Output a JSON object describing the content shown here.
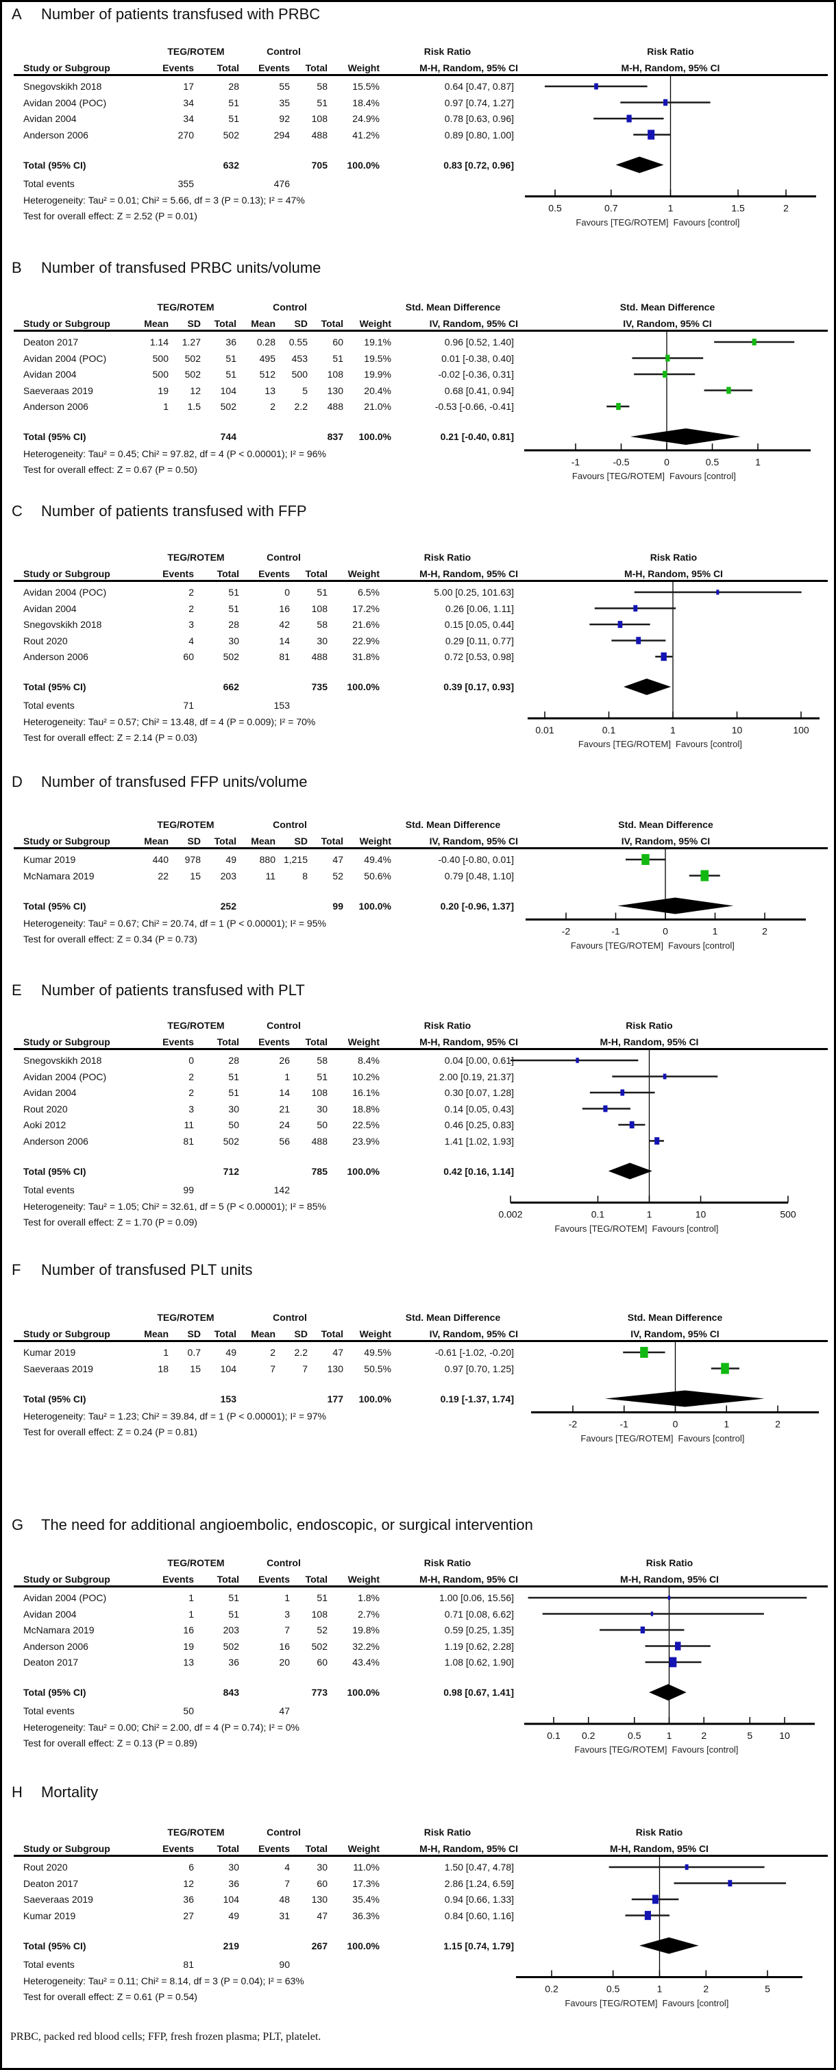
{
  "footnote": "PRBC, packed red blood cells; FFP, fresh frozen plasma; PLT, platelet.",
  "colors": {
    "rr_marker": "#1414b4",
    "smd_marker": "#12b812",
    "diamond": "#000000"
  },
  "chart_data": [
    {
      "type": "forest",
      "letter": "A",
      "title": "Number of patients transfused with PRBC",
      "kind": "RR",
      "scale": "log",
      "group_headers": [
        "TEG/ROTEM",
        "Control",
        "Risk Ratio",
        "Risk Ratio"
      ],
      "columns": [
        "Study or Subgroup",
        "Events",
        "Total",
        "Events",
        "Total",
        "Weight",
        "M-H, Random, 95% CI"
      ],
      "plot_header": "M-H, Random, 95% CI",
      "studies": [
        [
          "Snegovskikh 2018",
          "17",
          "28",
          "55",
          "58",
          "15.5%",
          "0.64 [0.47, 0.87]"
        ],
        [
          "Avidan 2004 (POC)",
          "34",
          "51",
          "35",
          "51",
          "18.4%",
          "0.97 [0.74, 1.27]"
        ],
        [
          "Avidan 2004",
          "34",
          "51",
          "92",
          "108",
          "24.9%",
          "0.78 [0.63, 0.96]"
        ],
        [
          "Anderson 2006",
          "270",
          "502",
          "294",
          "488",
          "41.2%",
          "0.89 [0.80, 1.00]"
        ]
      ],
      "total": [
        "Total (95% CI)",
        "",
        "632",
        "",
        "705",
        "100.0%",
        "0.83 [0.72, 0.96]"
      ],
      "total_events": [
        "Total events",
        "355",
        "",
        "476"
      ],
      "heterogeneity": "Heterogeneity: Tau² = 0.01; Chi² = 5.66, df = 3 (P = 0.13); I² = 47%",
      "overall_effect": "Test for overall effect: Z = 2.52 (P = 0.01)",
      "ticks": [
        "0.5",
        "0.7",
        "1",
        "1.5",
        "2"
      ],
      "favours": [
        "Favours [TEG/ROTEM]",
        "Favours [control]"
      ]
    },
    {
      "type": "forest",
      "letter": "B",
      "title": "Number of transfused PRBC units/volume",
      "kind": "SMD",
      "scale": "linear",
      "group_headers": [
        "TEG/ROTEM",
        "Control",
        "Std. Mean Difference",
        "Std. Mean Difference"
      ],
      "columns": [
        "Study or Subgroup",
        "Mean",
        "SD",
        "Total",
        "Mean",
        "SD",
        "Total",
        "Weight",
        "IV, Random, 95% CI"
      ],
      "plot_header": "IV, Random, 95% CI",
      "studies": [
        [
          "Deaton 2017",
          "1.14",
          "1.27",
          "36",
          "0.28",
          "0.55",
          "60",
          "19.1%",
          "0.96 [0.52, 1.40]"
        ],
        [
          "Avidan 2004 (POC)",
          "500",
          "502",
          "51",
          "495",
          "453",
          "51",
          "19.5%",
          "0.01 [-0.38, 0.40]"
        ],
        [
          "Avidan 2004",
          "500",
          "502",
          "51",
          "512",
          "500",
          "108",
          "19.9%",
          "-0.02 [-0.36, 0.31]"
        ],
        [
          "Saeveraas 2019",
          "19",
          "12",
          "104",
          "13",
          "5",
          "130",
          "20.4%",
          "0.68 [0.41, 0.94]"
        ],
        [
          "Anderson 2006",
          "1",
          "1.5",
          "502",
          "2",
          "2.2",
          "488",
          "21.0%",
          "-0.53 [-0.66, -0.41]"
        ]
      ],
      "total": [
        "Total (95% CI)",
        "",
        "",
        "744",
        "",
        "",
        "837",
        "100.0%",
        "0.21 [-0.40, 0.81]"
      ],
      "heterogeneity": "Heterogeneity: Tau² = 0.45; Chi² = 97.82, df = 4 (P < 0.00001); I² = 96%",
      "overall_effect": "Test for overall effect: Z = 0.67 (P = 0.50)",
      "ticks": [
        "-1",
        "-0.5",
        "0",
        "0.5",
        "1"
      ],
      "favours": [
        "Favours [TEG/ROTEM]",
        "Favours [control]"
      ]
    },
    {
      "type": "forest",
      "letter": "C",
      "title": "Number of patients transfused with FFP",
      "kind": "RR",
      "scale": "log",
      "group_headers": [
        "TEG/ROTEM",
        "Control",
        "Risk Ratio",
        "Risk Ratio"
      ],
      "columns": [
        "Study or Subgroup",
        "Events",
        "Total",
        "Events",
        "Total",
        "Weight",
        "M-H, Random, 95% CI"
      ],
      "plot_header": "M-H, Random, 95% CI",
      "studies": [
        [
          "Avidan 2004 (POC)",
          "2",
          "51",
          "0",
          "51",
          "6.5%",
          "5.00 [0.25, 101.63]"
        ],
        [
          "Avidan 2004",
          "2",
          "51",
          "16",
          "108",
          "17.2%",
          "0.26 [0.06, 1.11]"
        ],
        [
          "Snegovskikh 2018",
          "3",
          "28",
          "42",
          "58",
          "21.6%",
          "0.15 [0.05, 0.44]"
        ],
        [
          "Rout 2020",
          "4",
          "30",
          "14",
          "30",
          "22.9%",
          "0.29 [0.11, 0.77]"
        ],
        [
          "Anderson 2006",
          "60",
          "502",
          "81",
          "488",
          "31.8%",
          "0.72 [0.53, 0.98]"
        ]
      ],
      "total": [
        "Total (95% CI)",
        "",
        "662",
        "",
        "735",
        "100.0%",
        "0.39 [0.17, 0.93]"
      ],
      "total_events": [
        "Total events",
        "71",
        "",
        "153"
      ],
      "heterogeneity": "Heterogeneity: Tau² = 0.57; Chi² = 13.48, df = 4 (P = 0.009); I² = 70%",
      "overall_effect": "Test for overall effect: Z = 2.14 (P = 0.03)",
      "ticks": [
        "0.01",
        "0.1",
        "1",
        "10",
        "100"
      ],
      "favours": [
        "Favours [TEG/ROTEM]",
        "Favours [control]"
      ]
    },
    {
      "type": "forest",
      "letter": "D",
      "title": "Number of transfused FFP units/volume",
      "kind": "SMD",
      "scale": "linear",
      "group_headers": [
        "TEG/ROTEM",
        "Control",
        "Std. Mean Difference",
        "Std. Mean Difference"
      ],
      "columns": [
        "Study or Subgroup",
        "Mean",
        "SD",
        "Total",
        "Mean",
        "SD",
        "Total",
        "Weight",
        "IV, Random, 95% CI"
      ],
      "plot_header": "IV, Random, 95% CI",
      "studies": [
        [
          "Kumar 2019",
          "440",
          "978",
          "49",
          "880",
          "1,215",
          "47",
          "49.4%",
          "-0.40 [-0.80, 0.01]"
        ],
        [
          "McNamara 2019",
          "22",
          "15",
          "203",
          "11",
          "8",
          "52",
          "50.6%",
          "0.79 [0.48, 1.10]"
        ]
      ],
      "total": [
        "Total (95% CI)",
        "",
        "",
        "252",
        "",
        "",
        "99",
        "100.0%",
        "0.20 [-0.96, 1.37]"
      ],
      "heterogeneity": "Heterogeneity: Tau² = 0.67; Chi² = 20.74, df = 1 (P < 0.00001); I² = 95%",
      "overall_effect": "Test for overall effect: Z = 0.34 (P = 0.73)",
      "ticks": [
        "-2",
        "-1",
        "0",
        "1",
        "2"
      ],
      "favours": [
        "Favours [TEG/ROTEM]",
        "Favours [control]"
      ]
    },
    {
      "type": "forest",
      "letter": "E",
      "title": "Number of patients transfused with PLT",
      "kind": "RR",
      "scale": "log",
      "group_headers": [
        "TEG/ROTEM",
        "Control",
        "Risk Ratio",
        "Risk Ratio"
      ],
      "columns": [
        "Study or Subgroup",
        "Events",
        "Total",
        "Events",
        "Total",
        "Weight",
        "M-H, Random, 95% CI"
      ],
      "plot_header": "M-H, Random, 95% CI",
      "studies": [
        [
          "Snegovskikh 2018",
          "0",
          "28",
          "26",
          "58",
          "8.4%",
          "0.04 [0.00, 0.61]"
        ],
        [
          "Avidan 2004 (POC)",
          "2",
          "51",
          "1",
          "51",
          "10.2%",
          "2.00 [0.19, 21.37]"
        ],
        [
          "Avidan 2004",
          "2",
          "51",
          "14",
          "108",
          "16.1%",
          "0.30 [0.07, 1.28]"
        ],
        [
          "Rout 2020",
          "3",
          "30",
          "21",
          "30",
          "18.8%",
          "0.14 [0.05, 0.43]"
        ],
        [
          "Aoki 2012",
          "11",
          "50",
          "24",
          "50",
          "22.5%",
          "0.46 [0.25, 0.83]"
        ],
        [
          "Anderson 2006",
          "81",
          "502",
          "56",
          "488",
          "23.9%",
          "1.41 [1.02, 1.93]"
        ]
      ],
      "total": [
        "Total (95% CI)",
        "",
        "712",
        "",
        "785",
        "100.0%",
        "0.42 [0.16, 1.14]"
      ],
      "total_events": [
        "Total events",
        "99",
        "",
        "142"
      ],
      "heterogeneity": "Heterogeneity: Tau² = 1.05; Chi² = 32.61, df = 5 (P < 0.00001); I² = 85%",
      "overall_effect": "Test for overall effect: Z = 1.70 (P = 0.09)",
      "ticks": [
        "0.002",
        "0.1",
        "1",
        "10",
        "500"
      ],
      "favours": [
        "Favours [TEG/ROTEM]",
        "Favours [control]"
      ]
    },
    {
      "type": "forest",
      "letter": "F",
      "title": "Number of transfused PLT units",
      "kind": "SMD",
      "scale": "linear",
      "group_headers": [
        "TEG/ROTEM",
        "Control",
        "Std. Mean Difference",
        "Std. Mean Difference"
      ],
      "columns": [
        "Study or Subgroup",
        "Mean",
        "SD",
        "Total",
        "Mean",
        "SD",
        "Total",
        "Weight",
        "IV, Random, 95% CI"
      ],
      "plot_header": "IV, Random, 95% CI",
      "studies": [
        [
          "Kumar 2019",
          "1",
          "0.7",
          "49",
          "2",
          "2.2",
          "47",
          "49.5%",
          "-0.61 [-1.02, -0.20]"
        ],
        [
          "Saeveraas 2019",
          "18",
          "15",
          "104",
          "7",
          "7",
          "130",
          "50.5%",
          "0.97 [0.70, 1.25]"
        ]
      ],
      "total": [
        "Total (95% CI)",
        "",
        "",
        "153",
        "",
        "",
        "177",
        "100.0%",
        "0.19 [-1.37, 1.74]"
      ],
      "heterogeneity": "Heterogeneity: Tau² = 1.23; Chi² = 39.84, df = 1 (P < 0.00001); I² = 97%",
      "overall_effect": "Test for overall effect: Z = 0.24 (P = 0.81)",
      "ticks": [
        "-2",
        "-1",
        "0",
        "1",
        "2"
      ],
      "favours": [
        "Favours [TEG/ROTEM]",
        "Favours [control]"
      ]
    },
    {
      "type": "forest",
      "letter": "G",
      "title": "The need for additional angioembolic, endoscopic, or surgical intervention",
      "kind": "RR",
      "scale": "log",
      "group_headers": [
        "TEG/ROTEM",
        "Control",
        "Risk Ratio",
        "Risk Ratio"
      ],
      "columns": [
        "Study or Subgroup",
        "Events",
        "Total",
        "Events",
        "Total",
        "Weight",
        "M-H, Random, 95% CI"
      ],
      "plot_header": "M-H, Random, 95% CI",
      "studies": [
        [
          "Avidan 2004 (POC)",
          "1",
          "51",
          "1",
          "51",
          "1.8%",
          "1.00 [0.06, 15.56]"
        ],
        [
          "Avidan 2004",
          "1",
          "51",
          "3",
          "108",
          "2.7%",
          "0.71 [0.08, 6.62]"
        ],
        [
          "McNamara 2019",
          "16",
          "203",
          "7",
          "52",
          "19.8%",
          "0.59 [0.25, 1.35]"
        ],
        [
          "Anderson 2006",
          "19",
          "502",
          "16",
          "502",
          "32.2%",
          "1.19 [0.62, 2.28]"
        ],
        [
          "Deaton 2017",
          "13",
          "36",
          "20",
          "60",
          "43.4%",
          "1.08 [0.62, 1.90]"
        ]
      ],
      "total": [
        "Total (95% CI)",
        "",
        "843",
        "",
        "773",
        "100.0%",
        "0.98 [0.67, 1.41]"
      ],
      "total_events": [
        "Total events",
        "50",
        "",
        "47"
      ],
      "heterogeneity": "Heterogeneity: Tau² = 0.00; Chi² = 2.00, df = 4 (P = 0.74); I² = 0%",
      "overall_effect": "Test for overall effect: Z = 0.13 (P = 0.89)",
      "ticks": [
        "0.1",
        "0.2",
        "0.5",
        "1",
        "2",
        "5",
        "10"
      ],
      "favours": [
        "Favours [TEG/ROTEM]",
        "Favours [control]"
      ]
    },
    {
      "type": "forest",
      "letter": "H",
      "title": "Mortality",
      "kind": "RR",
      "scale": "log",
      "group_headers": [
        "TEG/ROTEM",
        "Control",
        "Risk Ratio",
        "Risk Ratio"
      ],
      "columns": [
        "Study or Subgroup",
        "Events",
        "Total",
        "Events",
        "Total",
        "Weight",
        "M-H, Random, 95% CI"
      ],
      "plot_header": "M-H, Random, 95% CI",
      "studies": [
        [
          "Rout 2020",
          "6",
          "30",
          "4",
          "30",
          "11.0%",
          "1.50 [0.47, 4.78]"
        ],
        [
          "Deaton 2017",
          "12",
          "36",
          "7",
          "60",
          "17.3%",
          "2.86 [1.24, 6.59]"
        ],
        [
          "Saeveraas 2019",
          "36",
          "104",
          "48",
          "130",
          "35.4%",
          "0.94 [0.66, 1.33]"
        ],
        [
          "Kumar 2019",
          "27",
          "49",
          "31",
          "47",
          "36.3%",
          "0.84 [0.60, 1.16]"
        ]
      ],
      "total": [
        "Total (95% CI)",
        "",
        "219",
        "",
        "267",
        "100.0%",
        "1.15 [0.74, 1.79]"
      ],
      "total_events": [
        "Total events",
        "81",
        "",
        "90"
      ],
      "heterogeneity": "Heterogeneity: Tau² = 0.11; Chi² = 8.14, df = 3 (P = 0.04); I² = 63%",
      "overall_effect": "Test for overall effect: Z = 0.61 (P = 0.54)",
      "ticks": [
        "0.2",
        "0.5",
        "1",
        "2",
        "5"
      ],
      "favours": [
        "Favours [TEG/ROTEM]",
        "Favours [control]"
      ]
    }
  ]
}
